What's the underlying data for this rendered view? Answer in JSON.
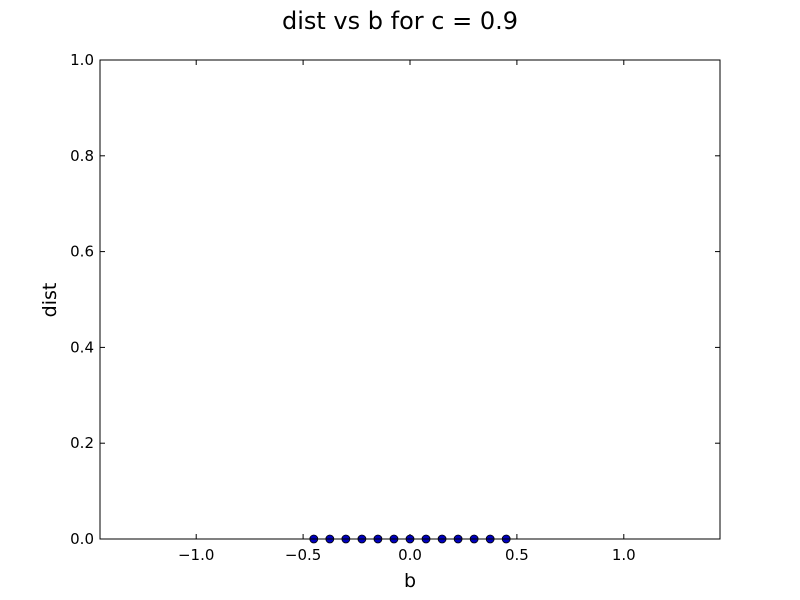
{
  "chart_data": {
    "type": "scatter",
    "title": "dist vs b for c = 0.9",
    "xlabel": "b",
    "ylabel": "dist",
    "xlim": [
      -1.45,
      1.45
    ],
    "ylim": [
      0.0,
      1.0
    ],
    "xticks": [
      -1.0,
      -0.5,
      0.0,
      0.5,
      1.0
    ],
    "xtick_labels": [
      "−1.0",
      "−0.5",
      "0.0",
      "0.5",
      "1.0"
    ],
    "yticks": [
      0.0,
      0.2,
      0.4,
      0.6,
      0.8,
      1.0
    ],
    "ytick_labels": [
      "0.0",
      "0.2",
      "0.4",
      "0.6",
      "0.8",
      "1.0"
    ],
    "grid": false,
    "series": [
      {
        "color": "#0000bf",
        "marker": "circle",
        "x": [
          -0.45,
          -0.375,
          -0.3,
          -0.225,
          -0.15,
          -0.075,
          0.0,
          0.075,
          0.15,
          0.225,
          0.3,
          0.375,
          0.45
        ],
        "y": [
          0,
          0,
          0,
          0,
          0,
          0,
          0,
          0,
          0,
          0,
          0,
          0,
          0
        ]
      }
    ]
  }
}
